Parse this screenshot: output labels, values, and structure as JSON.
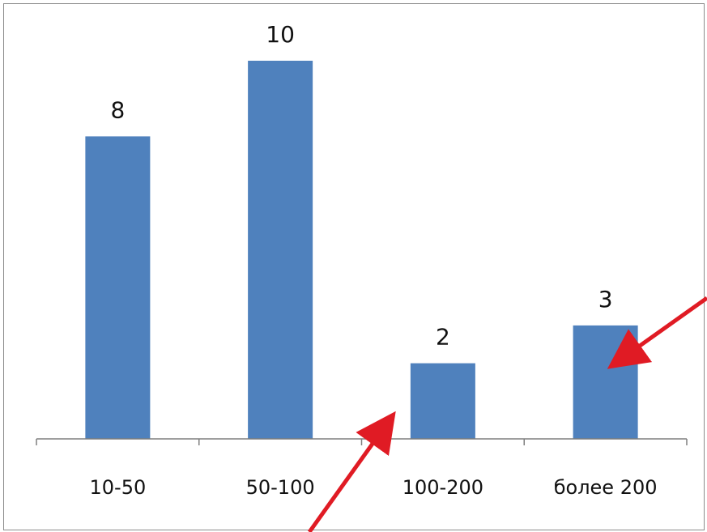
{
  "chart_data": {
    "type": "bar",
    "categories": [
      "10-50",
      "50-100",
      "100-200",
      "более 200"
    ],
    "values": [
      8,
      10,
      2,
      3
    ],
    "data_labels": [
      "8",
      "10",
      "2",
      "3"
    ],
    "title": "",
    "xlabel": "",
    "ylabel": "",
    "ylim": [
      0,
      10
    ],
    "grid": false,
    "legend": "none"
  },
  "colors": {
    "bar": "#4f81bd",
    "axis": "#7f7f7f",
    "arrow": "#e01b24",
    "frame": "#8c8c8c"
  },
  "annotations": {
    "arrows": [
      {
        "icon": "red-arrow-icon",
        "points_to": "100-200"
      },
      {
        "icon": "red-arrow-icon",
        "points_to": "более 200"
      }
    ]
  }
}
